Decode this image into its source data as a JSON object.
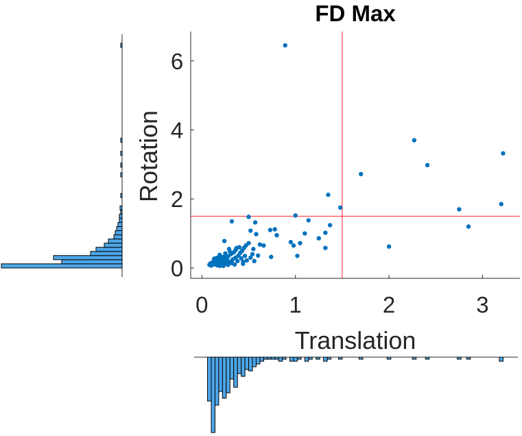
{
  "colors": {
    "points": "#0072BD",
    "histogram_fill": "#4DA6E8",
    "histogram_edge": "#000000",
    "threshold": "#FF0000",
    "axis": "#262626"
  },
  "chart_data": {
    "type": "scatter",
    "title": "FD Max",
    "xlabel": "Translation",
    "ylabel": "Rotation",
    "xlim": [
      -0.12,
      3.4
    ],
    "ylim": [
      -0.3,
      6.85
    ],
    "xticks": [
      0,
      1,
      2,
      3
    ],
    "yticks": [
      0,
      2,
      4,
      6
    ],
    "grid": false,
    "thresholds": {
      "x": 1.5,
      "y": 1.5
    },
    "points": [
      [
        0.89,
        6.45
      ],
      [
        2.27,
        3.7
      ],
      [
        3.22,
        3.32
      ],
      [
        2.41,
        2.98
      ],
      [
        1.7,
        2.72
      ],
      [
        1.35,
        2.12
      ],
      [
        3.2,
        1.85
      ],
      [
        1.48,
        1.75
      ],
      [
        2.75,
        1.7
      ],
      [
        1.0,
        1.52
      ],
      [
        0.5,
        1.48
      ],
      [
        2.85,
        1.2
      ],
      [
        2.0,
        0.62
      ],
      [
        0.32,
        1.35
      ],
      [
        0.57,
        1.32
      ],
      [
        1.14,
        1.38
      ],
      [
        1.32,
        1.02
      ],
      [
        1.37,
        1.24
      ],
      [
        1.25,
        0.86
      ],
      [
        1.32,
        0.58
      ],
      [
        1.1,
        1.0
      ],
      [
        1.05,
        0.72
      ],
      [
        0.95,
        0.75
      ],
      [
        0.98,
        0.65
      ],
      [
        1.02,
        0.35
      ],
      [
        0.78,
        1.12
      ],
      [
        0.73,
        1.1
      ],
      [
        0.8,
        0.95
      ],
      [
        0.66,
        0.65
      ],
      [
        0.62,
        0.68
      ],
      [
        0.58,
        0.98
      ],
      [
        0.52,
        1.08
      ],
      [
        0.24,
        0.78
      ],
      [
        0.74,
        0.32
      ],
      [
        0.55,
        0.55
      ],
      [
        0.54,
        0.4
      ],
      [
        0.5,
        0.72
      ],
      [
        0.47,
        0.65
      ],
      [
        0.45,
        0.58
      ],
      [
        0.43,
        0.5
      ],
      [
        0.41,
        0.44
      ],
      [
        0.39,
        0.36
      ],
      [
        0.37,
        0.58
      ],
      [
        0.36,
        0.3
      ],
      [
        0.34,
        0.45
      ],
      [
        0.33,
        0.25
      ],
      [
        0.31,
        0.4
      ],
      [
        0.3,
        0.18
      ],
      [
        0.29,
        0.55
      ],
      [
        0.28,
        0.33
      ],
      [
        0.27,
        0.22
      ],
      [
        0.26,
        0.12
      ],
      [
        0.25,
        0.42
      ],
      [
        0.24,
        0.28
      ],
      [
        0.23,
        0.16
      ],
      [
        0.22,
        0.32
      ],
      [
        0.21,
        0.1
      ],
      [
        0.2,
        0.24
      ],
      [
        0.19,
        0.38
      ],
      [
        0.18,
        0.14
      ],
      [
        0.17,
        0.3
      ],
      [
        0.16,
        0.08
      ],
      [
        0.15,
        0.2
      ],
      [
        0.14,
        0.12
      ],
      [
        0.13,
        0.26
      ],
      [
        0.12,
        0.1
      ],
      [
        0.11,
        0.16
      ],
      [
        0.1,
        0.07
      ],
      [
        0.09,
        0.13
      ],
      [
        0.08,
        0.09
      ],
      [
        0.38,
        0.2
      ],
      [
        0.42,
        0.28
      ],
      [
        0.44,
        0.18
      ],
      [
        0.46,
        0.35
      ],
      [
        0.48,
        0.22
      ],
      [
        0.35,
        0.1
      ],
      [
        0.32,
        0.14
      ],
      [
        0.28,
        0.09
      ],
      [
        0.26,
        0.36
      ],
      [
        0.22,
        0.2
      ],
      [
        0.2,
        0.12
      ],
      [
        0.18,
        0.22
      ],
      [
        0.16,
        0.16
      ],
      [
        0.14,
        0.28
      ],
      [
        0.19,
        0.06
      ],
      [
        0.4,
        0.6
      ],
      [
        0.36,
        0.52
      ],
      [
        0.3,
        0.47
      ],
      [
        0.25,
        0.2
      ],
      [
        0.23,
        0.06
      ],
      [
        0.52,
        0.3
      ],
      [
        0.56,
        0.2
      ],
      [
        0.6,
        0.36
      ],
      [
        0.44,
        0.12
      ],
      [
        0.21,
        0.28
      ]
    ],
    "histogram_x": {
      "bin_width": 0.04,
      "bins": [
        [
          0.08,
          3.2
        ],
        [
          0.12,
          5.5
        ],
        [
          0.16,
          3.5
        ],
        [
          0.2,
          2.5
        ],
        [
          0.24,
          3.0
        ],
        [
          0.28,
          2.6
        ],
        [
          0.32,
          1.6
        ],
        [
          0.36,
          2.2
        ],
        [
          0.4,
          1.2
        ],
        [
          0.44,
          1.4
        ],
        [
          0.48,
          0.9
        ],
        [
          0.52,
          1.0
        ],
        [
          0.56,
          0.7
        ],
        [
          0.6,
          0.5
        ],
        [
          0.64,
          0.3
        ],
        [
          0.68,
          0.15
        ],
        [
          0.72,
          0.15
        ],
        [
          0.76,
          0.15
        ],
        [
          0.8,
          0.15
        ],
        [
          0.84,
          0.3
        ],
        [
          0.88,
          0.15
        ],
        [
          0.96,
          0.3
        ],
        [
          1.0,
          0.3
        ],
        [
          1.04,
          0.15
        ],
        [
          1.12,
          0.3
        ],
        [
          1.16,
          0.15
        ],
        [
          1.24,
          0.15
        ],
        [
          1.32,
          0.3
        ],
        [
          1.36,
          0.15
        ],
        [
          1.48,
          0.15
        ],
        [
          1.7,
          0.15
        ],
        [
          2.0,
          0.15
        ],
        [
          2.27,
          0.15
        ],
        [
          2.41,
          0.15
        ],
        [
          2.75,
          0.15
        ],
        [
          2.85,
          0.15
        ],
        [
          3.2,
          0.3
        ]
      ]
    },
    "histogram_y": {
      "bin_width": 0.12,
      "bins": [
        [
          0.06,
          8.8
        ],
        [
          0.18,
          4.4
        ],
        [
          0.3,
          5.0
        ],
        [
          0.42,
          2.3
        ],
        [
          0.54,
          1.9
        ],
        [
          0.66,
          1.3
        ],
        [
          0.78,
          1.0
        ],
        [
          0.9,
          0.6
        ],
        [
          1.02,
          0.5
        ],
        [
          1.14,
          0.4
        ],
        [
          1.26,
          0.3
        ],
        [
          1.38,
          0.2
        ],
        [
          1.5,
          0.2
        ],
        [
          1.62,
          0.1
        ],
        [
          1.74,
          0.15
        ],
        [
          2.1,
          0.1
        ],
        [
          2.7,
          0.1
        ],
        [
          2.98,
          0.1
        ],
        [
          3.32,
          0.1
        ],
        [
          3.7,
          0.1
        ],
        [
          6.45,
          0.1
        ]
      ]
    }
  }
}
